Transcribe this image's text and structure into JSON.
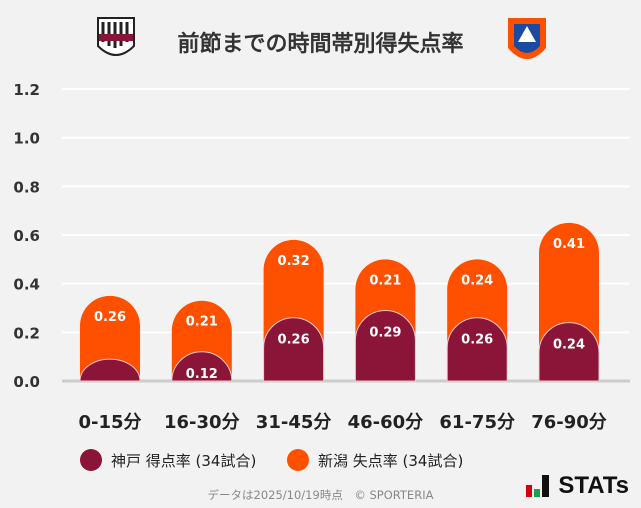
{
  "title": "前節までの時間帯別得失点率",
  "logos": {
    "left": "VISSEL",
    "right": "ALBIREX"
  },
  "colors": {
    "kobe": "#8b1538",
    "niigata": "#ff5000",
    "background": "#f2f2f2"
  },
  "chart_data": {
    "type": "bar",
    "stacked": true,
    "categories": [
      "0-15分",
      "16-30分",
      "31-45分",
      "46-60分",
      "61-75分",
      "76-90分"
    ],
    "series": [
      {
        "name": "神戸 得点率 (34試合)",
        "values": [
          0.09,
          0.12,
          0.26,
          0.29,
          0.26,
          0.24
        ],
        "labels": [
          "",
          "0.12",
          "0.26",
          "0.29",
          "0.26",
          "0.24"
        ]
      },
      {
        "name": "新潟 失点率 (34試合)",
        "values": [
          0.26,
          0.21,
          0.32,
          0.21,
          0.24,
          0.41
        ],
        "labels": [
          "0.26",
          "0.21",
          "0.32",
          "0.21",
          "0.24",
          "0.41"
        ]
      }
    ],
    "ylim": [
      0,
      1.2
    ],
    "yticks": [
      "0.0",
      "0.2",
      "0.4",
      "0.6",
      "0.8",
      "1.0",
      "1.2"
    ],
    "grid": true,
    "legend": "bottom"
  },
  "legend": {
    "kobe": "神戸 得点率 (34試合)",
    "niigata": "新潟 失点率 (34試合)"
  },
  "footer": "データは2025/10/19時点　© SPORTERIA",
  "brand": "STATs"
}
